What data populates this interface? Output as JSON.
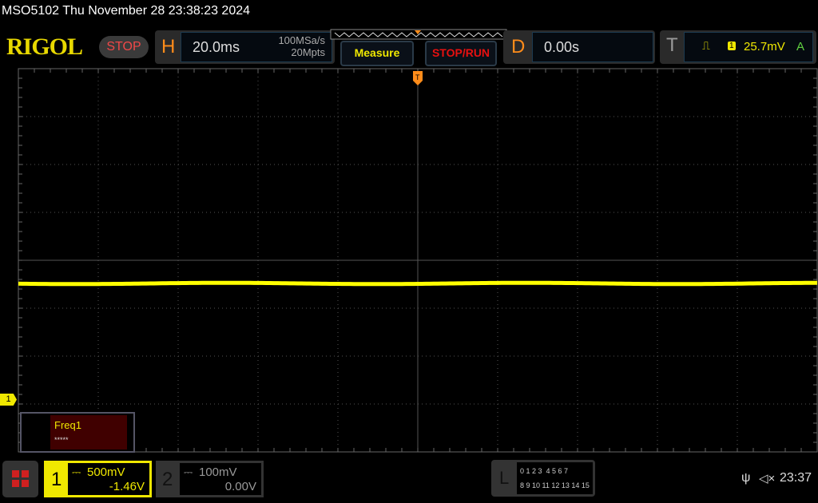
{
  "header": {
    "title": "MSO5102  Thu November 28 23:38:23 2024",
    "logo": "RIGOL",
    "run_state": "STOP"
  },
  "horizontal": {
    "label": "H",
    "timebase": "20.0ms",
    "sample_rate": "100MSa/s",
    "memory_depth": "20Mpts"
  },
  "buttons": {
    "measure": "Measure",
    "stop_run": "STOP/RUN"
  },
  "delay": {
    "label": "D",
    "value": "0.00s"
  },
  "trigger": {
    "label": "T",
    "source": "1",
    "level": "25.7mV",
    "mode": "A",
    "slope_icon": "rising-edge-icon"
  },
  "measurement": {
    "name": "Freq1",
    "value": "*****"
  },
  "channel_marker": "1",
  "channels": [
    {
      "number": "1",
      "scale": "500mV",
      "offset": "-1.46V",
      "color": "#f0e800"
    },
    {
      "number": "2",
      "scale": "100mV",
      "offset": "0.00V",
      "color": "#888888"
    }
  ],
  "logic": {
    "label": "L",
    "row1": "0 1 2 3  4 5 6 7",
    "row2": "8 9 10 11 12 13 14 15"
  },
  "status": {
    "clock": "23:37",
    "usb_icon": "usb-icon",
    "sound_icon": "speaker-muted-icon"
  },
  "colors": {
    "trace": "#ffff00",
    "accent": "#ff8c1a"
  }
}
